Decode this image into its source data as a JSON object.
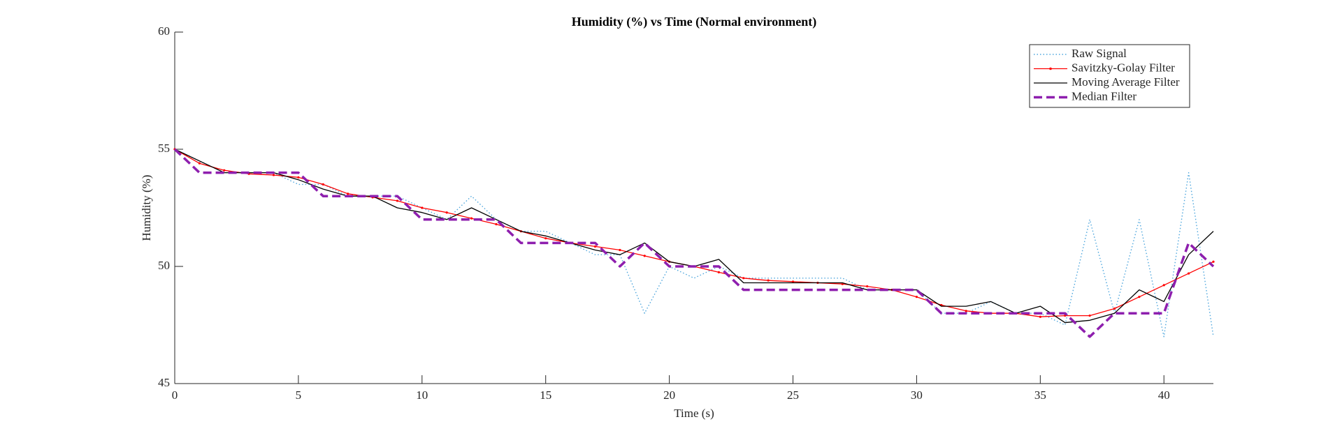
{
  "chart_data": {
    "type": "line",
    "title": "Humidity (%) vs Time (Normal environment)",
    "x_label": "Time (s)",
    "y_label": "Humidity (%)",
    "x": [
      0,
      1,
      2,
      3,
      4,
      5,
      6,
      7,
      8,
      9,
      10,
      11,
      12,
      13,
      14,
      15,
      16,
      17,
      18,
      19,
      20,
      21,
      22,
      23,
      24,
      25,
      26,
      27,
      28,
      29,
      30,
      31,
      32,
      33,
      34,
      35,
      36,
      37,
      38,
      39,
      40,
      41,
      42
    ],
    "series": [
      {
        "name": "Raw Signal",
        "color": "#4da6dd",
        "linestyle": "dotted",
        "values": [
          55,
          54.5,
          54,
          54,
          54,
          53.5,
          53.5,
          53,
          53,
          53,
          52.5,
          52,
          53,
          52,
          51.5,
          51.5,
          51,
          50.5,
          50.5,
          48,
          50,
          49.5,
          50,
          49.5,
          49.5,
          49.5,
          49.5,
          49.5,
          49,
          49,
          49,
          48,
          48,
          48.5,
          48,
          48,
          47.5,
          52,
          48,
          52,
          47,
          54,
          47
        ]
      },
      {
        "name": "Savitzky-Golay Filter",
        "color": "#ff0000",
        "linestyle": "solid",
        "marker": "dot",
        "values": [
          55,
          54.4,
          54.1,
          53.95,
          53.9,
          53.8,
          53.5,
          53.1,
          52.95,
          52.8,
          52.5,
          52.3,
          52.05,
          51.8,
          51.5,
          51.2,
          51,
          50.85,
          50.7,
          50.45,
          50.2,
          50,
          49.75,
          49.5,
          49.4,
          49.35,
          49.3,
          49.25,
          49.15,
          49,
          48.7,
          48.35,
          48.1,
          48,
          48,
          47.85,
          47.9,
          47.9,
          48.2,
          48.7,
          49.2,
          49.7,
          50.2
        ]
      },
      {
        "name": "Moving Average Filter",
        "color": "#000000",
        "linestyle": "solid",
        "values": [
          55,
          54.5,
          54,
          54,
          54,
          53.7,
          53.3,
          53,
          53,
          52.5,
          52.3,
          52,
          52.5,
          52,
          51.5,
          51.3,
          51,
          50.7,
          50.5,
          51,
          50.2,
          50,
          50.3,
          49.3,
          49.3,
          49.3,
          49.3,
          49.3,
          49,
          49,
          49,
          48.3,
          48.3,
          48.5,
          48,
          48.3,
          47.6,
          47.7,
          48,
          49,
          48.5,
          50.5,
          51.5
        ]
      },
      {
        "name": "Median Filter",
        "color": "#8e1fae",
        "linestyle": "dashed",
        "values": [
          55,
          54,
          54,
          54,
          54,
          54,
          53,
          53,
          53,
          53,
          52,
          52,
          52,
          52,
          51,
          51,
          51,
          51,
          50,
          51,
          50,
          50,
          50,
          49,
          49,
          49,
          49,
          49,
          49,
          49,
          49,
          48,
          48,
          48,
          48,
          48,
          48,
          47,
          48,
          48,
          48,
          51,
          50
        ]
      }
    ],
    "xlim": [
      0,
      42
    ],
    "xticks": [
      0,
      5,
      10,
      15,
      20,
      25,
      30,
      35,
      40
    ],
    "ylim": [
      45,
      60
    ],
    "yticks": [
      45,
      50,
      55,
      60
    ],
    "grid": false,
    "legend": "northeast"
  }
}
